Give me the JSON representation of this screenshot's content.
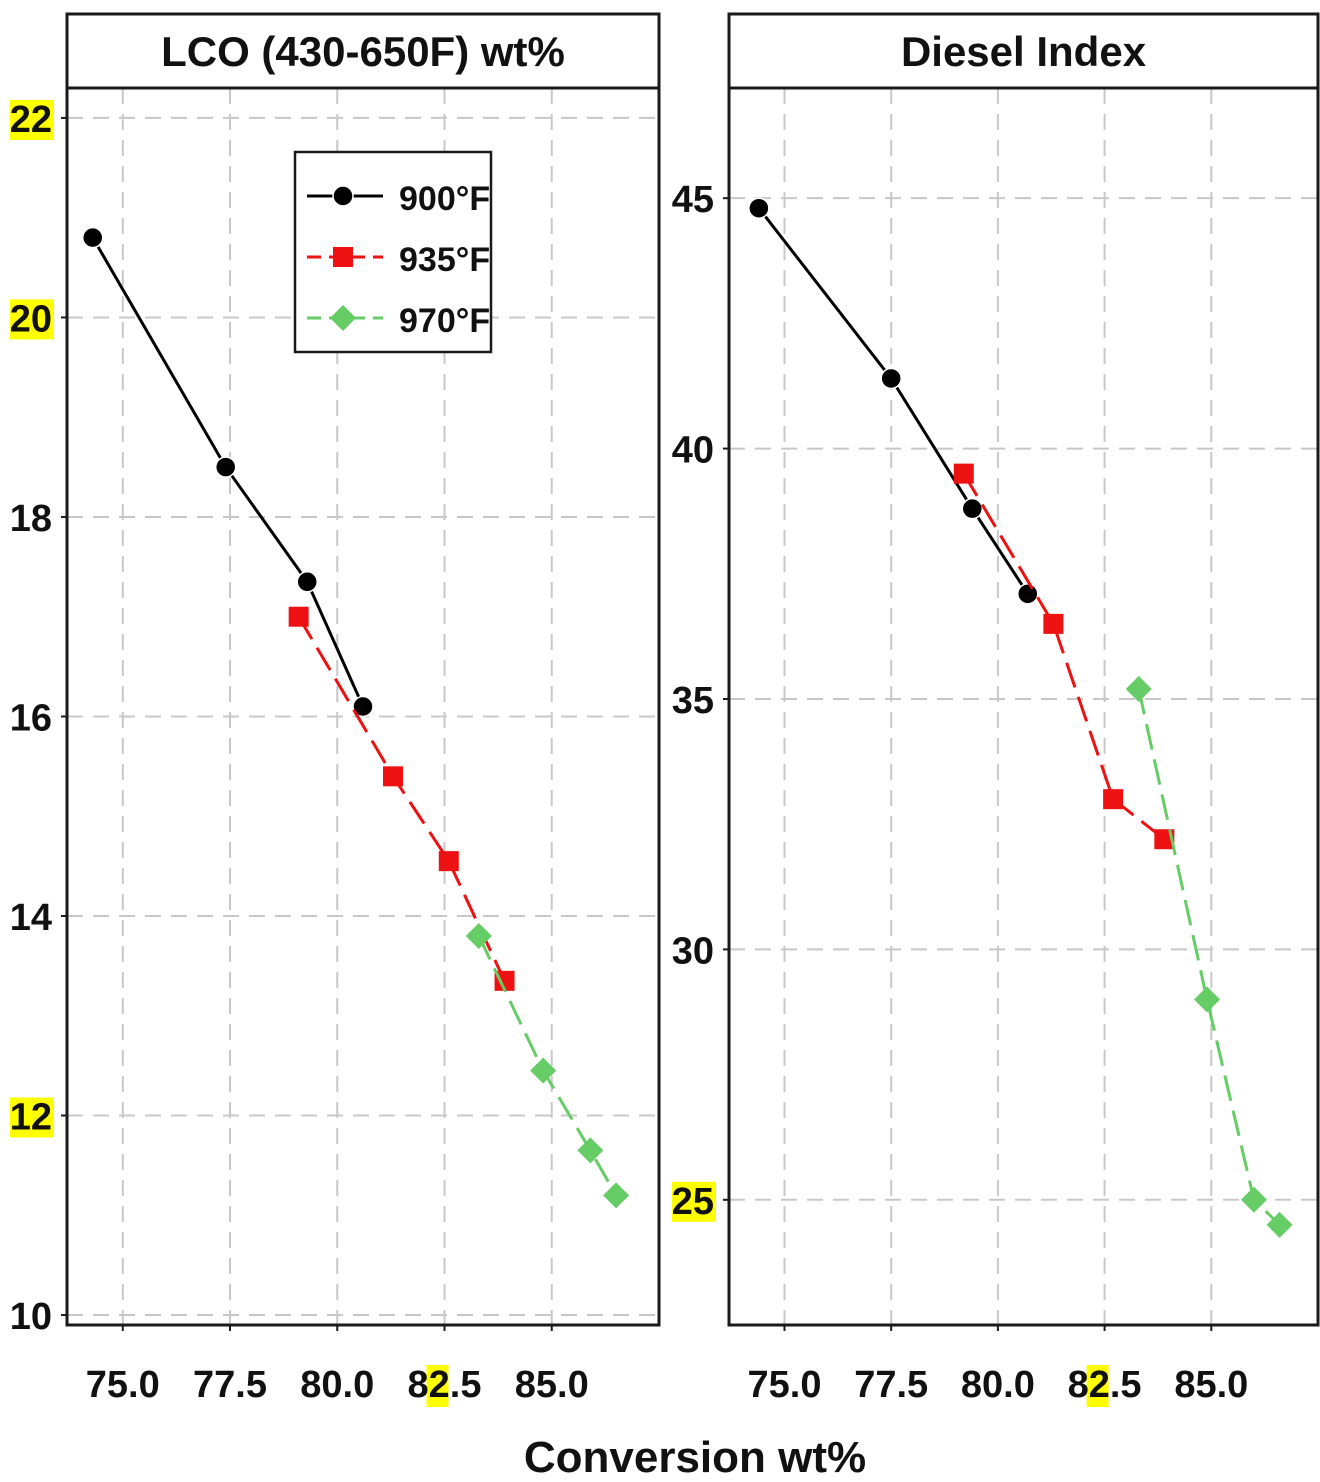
{
  "chart_data": {
    "type": "line",
    "xlabel": "Conversion wt%",
    "x_ticks": [
      "75.0",
      "77.5",
      "80.0",
      "82.5",
      "85.0"
    ],
    "xlim": [
      73.7,
      87.5
    ],
    "highlight_color": "#ffff00",
    "series_styles": [
      {
        "name": "900°F",
        "color": "#000000",
        "marker": "circle",
        "dash": "solid"
      },
      {
        "name": "935°F",
        "color": "#ee1111",
        "marker": "square",
        "dash": "dashed"
      },
      {
        "name": "970°F",
        "color": "#66cc66",
        "marker": "diamond",
        "dash": "dashed"
      }
    ],
    "panels": [
      {
        "title": "LCO (430-650F) wt%",
        "ylim": [
          9.9,
          22.3
        ],
        "y_ticks": [
          "10",
          "12",
          "14",
          "16",
          "18",
          "20",
          "22"
        ],
        "highlighted_y_ticks": [
          "12",
          "20",
          "22"
        ],
        "highlighted_x_ticks": [
          "82.5"
        ],
        "legend": "top-center",
        "series": [
          {
            "name": "900°F",
            "x": [
              74.3,
              77.4,
              79.3,
              80.6
            ],
            "y": [
              20.8,
              18.5,
              17.35,
              16.1
            ]
          },
          {
            "name": "935°F",
            "x": [
              79.1,
              81.3,
              82.6,
              83.9
            ],
            "y": [
              17.0,
              15.4,
              14.55,
              13.35
            ]
          },
          {
            "name": "970°F",
            "x": [
              83.3,
              84.8,
              85.9,
              86.5
            ],
            "y": [
              13.8,
              12.45,
              11.65,
              11.2
            ]
          }
        ]
      },
      {
        "title": "Diesel Index",
        "ylim": [
          22.5,
          47.2
        ],
        "y_ticks": [
          "25",
          "30",
          "35",
          "40",
          "45"
        ],
        "highlighted_y_ticks": [
          "25"
        ],
        "highlighted_x_ticks": [
          "82.5"
        ],
        "series": [
          {
            "name": "900°F",
            "x": [
              74.4,
              77.5,
              79.4,
              80.7
            ],
            "y": [
              44.8,
              41.4,
              38.8,
              37.1
            ]
          },
          {
            "name": "935°F",
            "x": [
              79.2,
              81.3,
              82.7,
              83.9
            ],
            "y": [
              39.5,
              36.5,
              33.0,
              32.2
            ]
          },
          {
            "name": "970°F",
            "x": [
              83.3,
              84.9,
              86.0,
              86.6
            ],
            "y": [
              35.2,
              29.0,
              25.0,
              24.5
            ]
          }
        ]
      }
    ]
  }
}
